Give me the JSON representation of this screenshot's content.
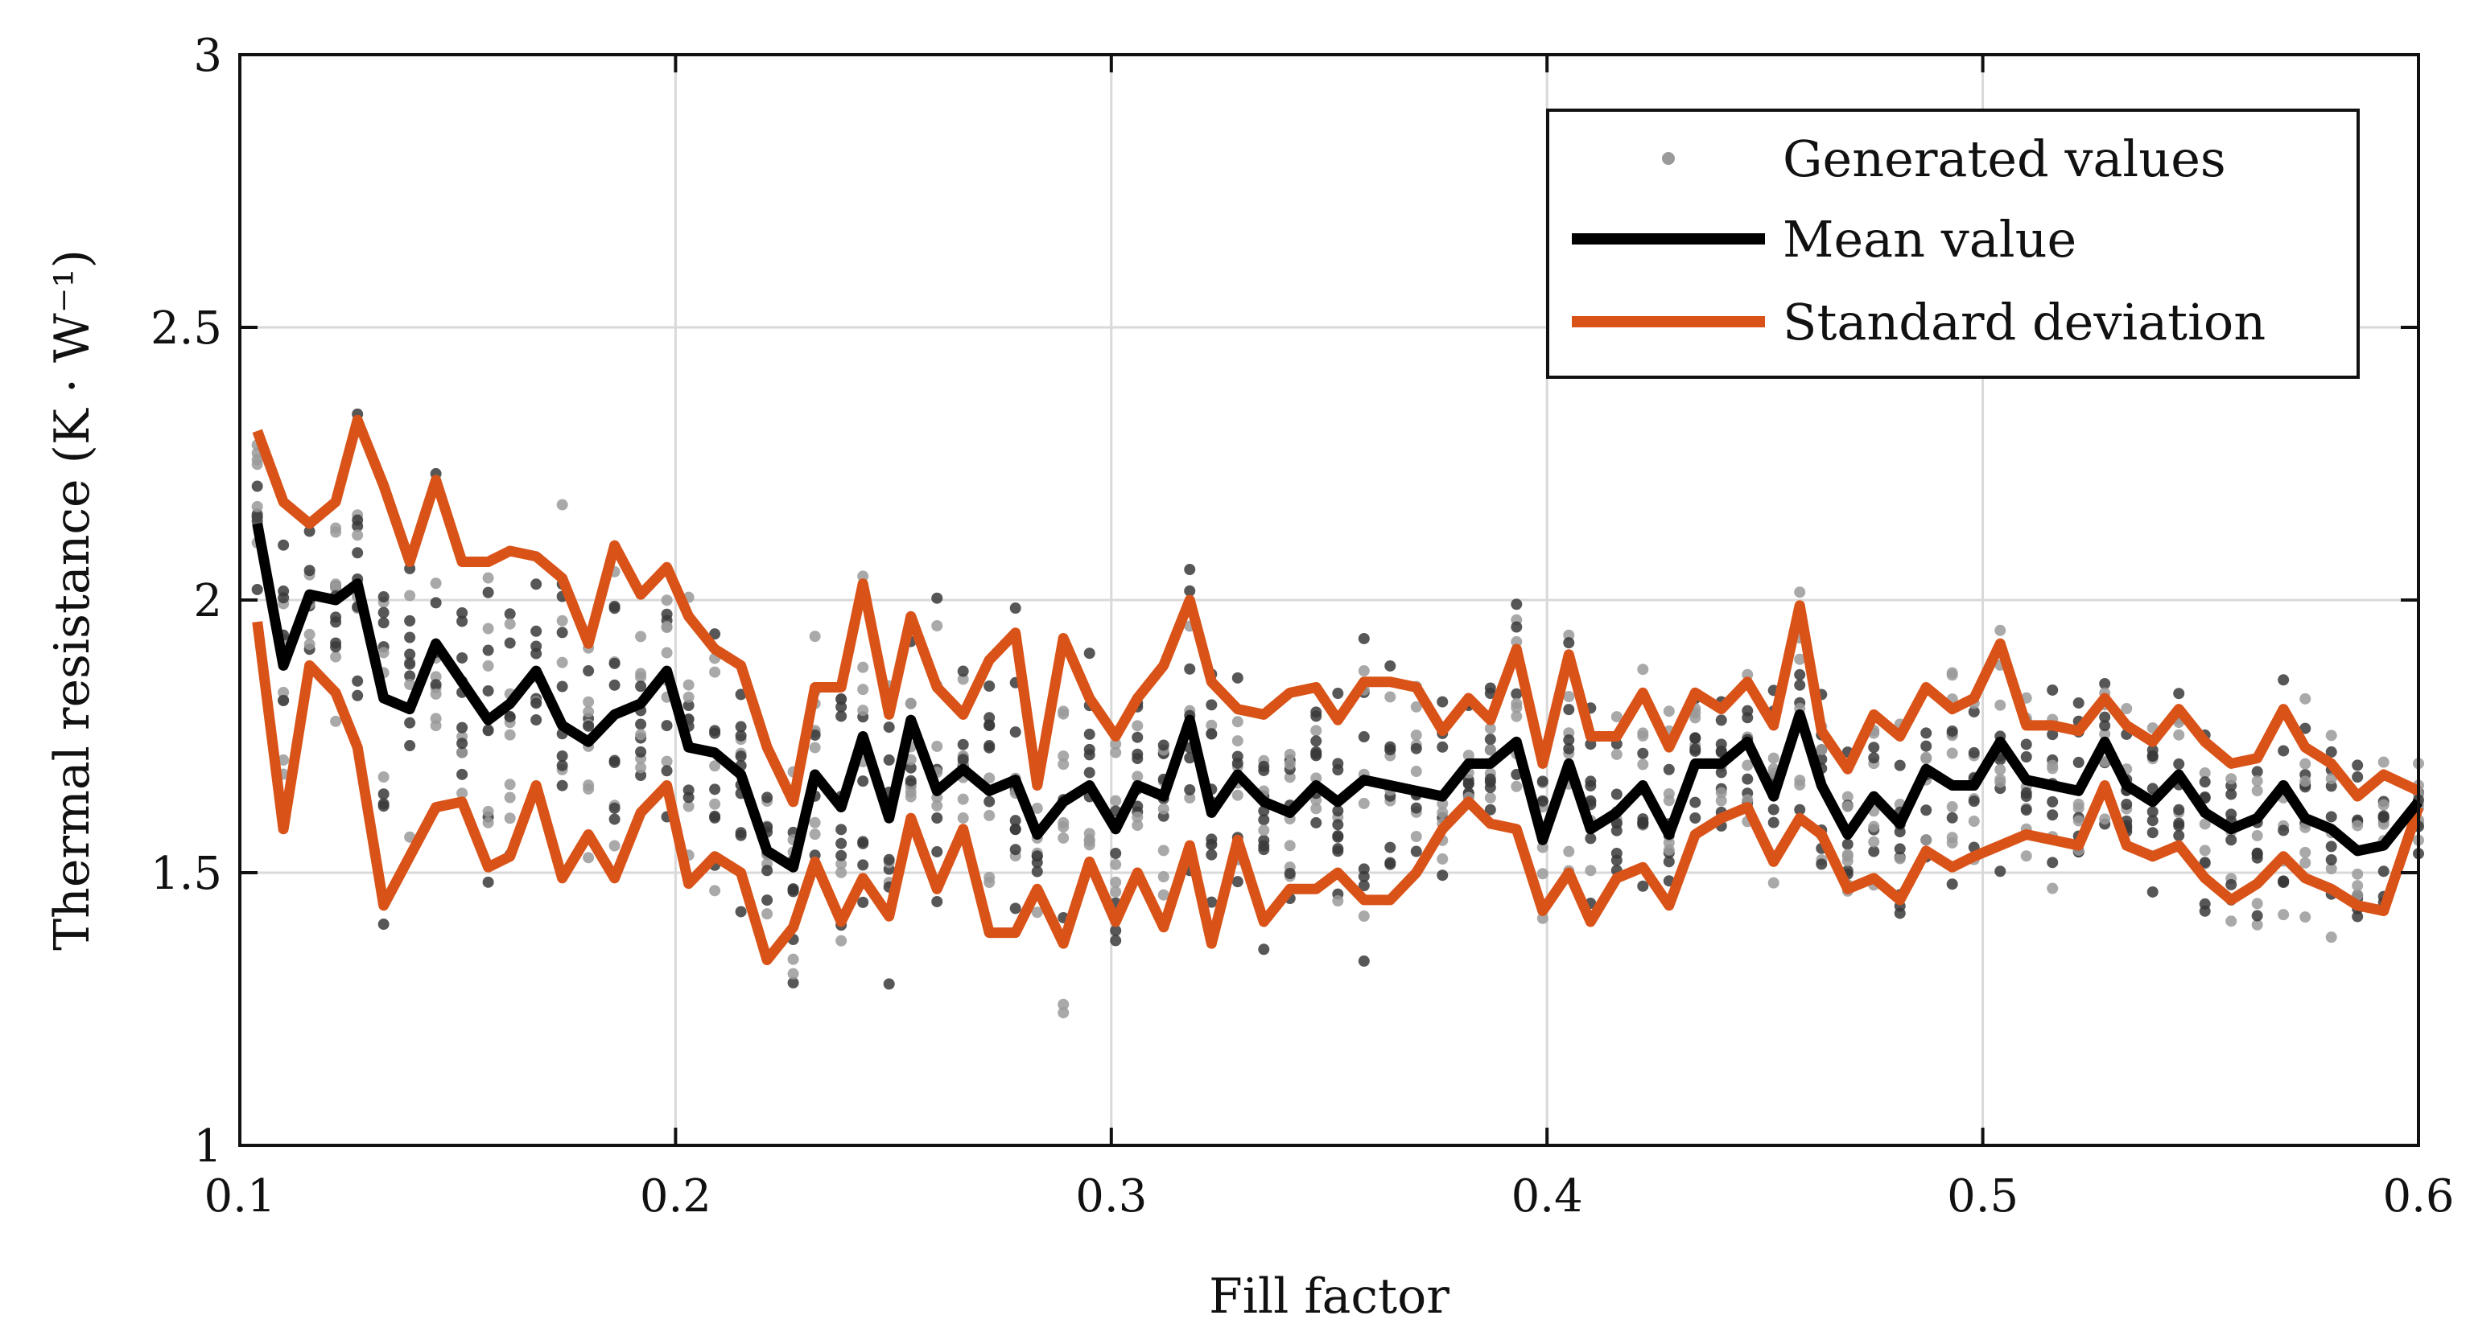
{
  "chart_data": {
    "type": "scatter",
    "title": "",
    "xlabel": "Fill factor",
    "ylabel": "Thermal resistance (K · W⁻¹)",
    "xlim": [
      0.1,
      0.6
    ],
    "ylim": [
      1,
      3
    ],
    "xticks": [
      0.1,
      0.2,
      0.3,
      0.4,
      0.5,
      0.6
    ],
    "xtick_labels": [
      "0.1",
      "0.2",
      "0.3",
      "0.4",
      "0.5",
      "0.6"
    ],
    "yticks": [
      1,
      1.5,
      2,
      2.5,
      3
    ],
    "ytick_labels": [
      "1",
      "1.5",
      "2",
      "2.5",
      "3"
    ],
    "grid": true,
    "legend_position": "top-right",
    "legend": [
      "Generated values",
      "Mean value",
      "Standard deviation"
    ],
    "colors": {
      "points": "#555555",
      "mean": "#000000",
      "std": "#d95319"
    },
    "x": [
      0.104,
      0.11,
      0.116,
      0.122,
      0.127,
      0.133,
      0.139,
      0.145,
      0.151,
      0.157,
      0.162,
      0.168,
      0.174,
      0.18,
      0.186,
      0.192,
      0.198,
      0.203,
      0.209,
      0.215,
      0.221,
      0.227,
      0.232,
      0.238,
      0.243,
      0.249,
      0.254,
      0.26,
      0.266,
      0.272,
      0.278,
      0.283,
      0.289,
      0.295,
      0.301,
      0.306,
      0.312,
      0.318,
      0.323,
      0.329,
      0.335,
      0.341,
      0.347,
      0.352,
      0.358,
      0.364,
      0.37,
      0.376,
      0.382,
      0.387,
      0.393,
      0.399,
      0.405,
      0.41,
      0.416,
      0.422,
      0.428,
      0.434,
      0.44,
      0.446,
      0.452,
      0.458,
      0.463,
      0.469,
      0.475,
      0.481,
      0.487,
      0.493,
      0.498,
      0.504,
      0.51,
      0.516,
      0.522,
      0.528,
      0.533,
      0.539,
      0.545,
      0.551,
      0.557,
      0.563,
      0.569,
      0.574,
      0.58,
      0.586,
      0.592,
      0.6
    ],
    "series": [
      {
        "name": "Mean value",
        "values": [
          2.14,
          1.88,
          2.01,
          2.0,
          2.03,
          1.82,
          1.8,
          1.92,
          1.85,
          1.78,
          1.81,
          1.87,
          1.77,
          1.74,
          1.79,
          1.81,
          1.87,
          1.73,
          1.72,
          1.68,
          1.54,
          1.51,
          1.68,
          1.62,
          1.75,
          1.6,
          1.78,
          1.65,
          1.69,
          1.65,
          1.67,
          1.57,
          1.63,
          1.66,
          1.58,
          1.66,
          1.64,
          1.78,
          1.61,
          1.68,
          1.63,
          1.61,
          1.66,
          1.63,
          1.67,
          1.66,
          1.65,
          1.64,
          1.7,
          1.7,
          1.74,
          1.56,
          1.7,
          1.58,
          1.61,
          1.66,
          1.57,
          1.7,
          1.7,
          1.74,
          1.64,
          1.79,
          1.66,
          1.57,
          1.64,
          1.59,
          1.69,
          1.66,
          1.66,
          1.74,
          1.67,
          1.66,
          1.65,
          1.74,
          1.66,
          1.63,
          1.68,
          1.61,
          1.58,
          1.6,
          1.66,
          1.6,
          1.58,
          1.54,
          1.55,
          1.63
        ]
      },
      {
        "name": "Standard deviation (upper)",
        "values": [
          2.31,
          2.18,
          2.14,
          2.18,
          2.33,
          2.21,
          2.07,
          2.22,
          2.07,
          2.07,
          2.09,
          2.08,
          2.04,
          1.92,
          2.1,
          2.01,
          2.06,
          1.97,
          1.91,
          1.88,
          1.73,
          1.63,
          1.84,
          1.84,
          2.03,
          1.79,
          1.97,
          1.84,
          1.79,
          1.89,
          1.94,
          1.66,
          1.93,
          1.82,
          1.75,
          1.82,
          1.88,
          2.0,
          1.85,
          1.8,
          1.79,
          1.83,
          1.84,
          1.78,
          1.85,
          1.85,
          1.84,
          1.76,
          1.82,
          1.78,
          1.91,
          1.7,
          1.9,
          1.75,
          1.75,
          1.83,
          1.73,
          1.83,
          1.8,
          1.85,
          1.77,
          1.99,
          1.76,
          1.69,
          1.79,
          1.75,
          1.84,
          1.8,
          1.82,
          1.92,
          1.77,
          1.77,
          1.76,
          1.82,
          1.77,
          1.74,
          1.8,
          1.74,
          1.7,
          1.71,
          1.8,
          1.73,
          1.7,
          1.64,
          1.68,
          1.65
        ]
      },
      {
        "name": "Standard deviation (lower)",
        "values": [
          1.96,
          1.58,
          1.88,
          1.83,
          1.73,
          1.44,
          1.53,
          1.62,
          1.63,
          1.51,
          1.53,
          1.66,
          1.49,
          1.57,
          1.49,
          1.61,
          1.66,
          1.48,
          1.53,
          1.5,
          1.34,
          1.4,
          1.52,
          1.41,
          1.49,
          1.42,
          1.6,
          1.47,
          1.58,
          1.39,
          1.39,
          1.47,
          1.37,
          1.52,
          1.41,
          1.5,
          1.4,
          1.55,
          1.37,
          1.56,
          1.41,
          1.47,
          1.47,
          1.5,
          1.45,
          1.45,
          1.5,
          1.58,
          1.63,
          1.59,
          1.58,
          1.43,
          1.5,
          1.41,
          1.49,
          1.51,
          1.44,
          1.57,
          1.6,
          1.62,
          1.52,
          1.6,
          1.57,
          1.47,
          1.49,
          1.45,
          1.54,
          1.51,
          1.53,
          1.55,
          1.57,
          1.56,
          1.55,
          1.66,
          1.55,
          1.53,
          1.55,
          1.49,
          1.45,
          1.48,
          1.53,
          1.49,
          1.47,
          1.44,
          1.43,
          1.62
        ]
      }
    ],
    "scatter_spread": [
      0.28,
      0.58,
      0.21,
      0.29,
      0.47,
      0.61,
      0.39,
      0.52,
      0.34,
      0.44,
      0.43,
      0.31,
      0.44,
      0.29,
      0.47,
      0.32,
      0.3,
      0.36,
      0.32,
      0.33,
      0.3,
      0.3,
      0.29,
      0.45,
      0.52,
      0.36,
      0.38,
      0.45,
      0.29,
      0.34,
      0.47,
      0.27,
      0.55,
      0.35,
      0.3,
      0.31,
      0.4,
      0.45,
      0.38,
      0.32,
      0.39,
      0.31,
      0.31,
      0.3,
      0.41,
      0.4,
      0.34,
      0.24,
      0.28,
      0.26,
      0.35,
      0.34,
      0.41,
      0.29,
      0.26,
      0.3,
      0.27,
      0.24,
      0.25,
      0.28,
      0.28,
      0.39,
      0.26,
      0.24,
      0.25,
      0.3,
      0.3,
      0.3,
      0.29,
      0.38,
      0.25,
      0.26,
      0.27,
      0.25,
      0.27,
      0.27,
      0.27,
      0.3,
      0.29,
      0.28,
      0.29,
      0.27,
      0.27,
      0.24,
      0.23,
      0.15
    ],
    "samples_per_x": 12
  }
}
